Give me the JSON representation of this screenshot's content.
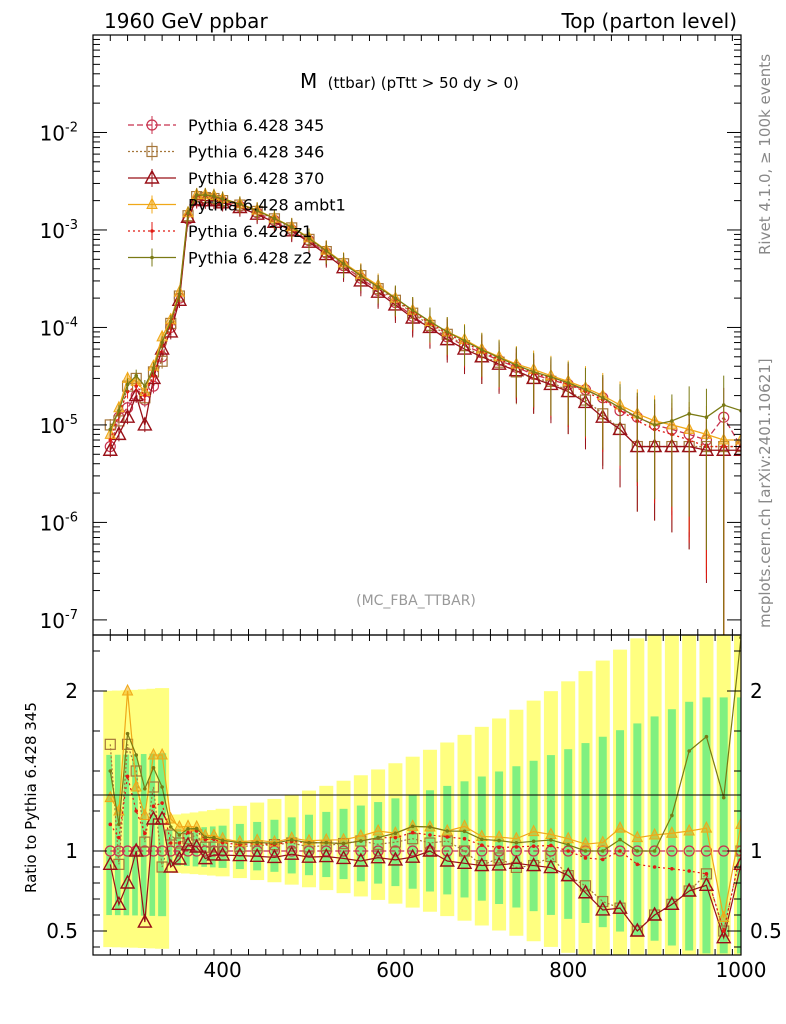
{
  "header": {
    "left": "1960 GeV ppbar",
    "right": "Top (parton level)"
  },
  "plot_title": "M (ttbar) (pTtt > 50 dy > 0)",
  "plot_title_main": "M",
  "plot_title_sub": "(ttbar) (pTtt > 50 dy > 0)",
  "analysis_tag": "(MC_FBA_TTBAR)",
  "side_text_top": "Rivet 4.1.0, ≥ 100k events",
  "side_text_bottom": "mcplots.cern.ch [arXiv:2401.10621]",
  "ratio_ylabel": "Ratio to Pythia 6.428 345",
  "colors": {
    "p345": "#c8324e",
    "p346": "#a5763a",
    "p370": "#991018",
    "ambt1": "#f0a818",
    "z1": "#e01a12",
    "z2": "#7a7a14",
    "band_yellow": "#ffff80",
    "band_green": "#80f080"
  },
  "chart_data": {
    "type": "line",
    "title": "M (ttbar) (pTtt > 50 dy > 0)",
    "xlabel": "",
    "ylabel": "",
    "xlim": [
      250,
      1000
    ],
    "ylim": [
      7e-08,
      0.1
    ],
    "yscale": "log",
    "ratio_ylim": [
      0.35,
      2.35
    ],
    "x_ticks": [
      "400",
      "600",
      "800",
      "1000"
    ],
    "y_ticks": [
      "10^-7",
      "10^-6",
      "10^-5",
      "10^-4",
      "10^-3",
      "10^-2"
    ],
    "ratio_ticks": [
      "0.5",
      "1",
      "2"
    ],
    "x": [
      270,
      280,
      290,
      300,
      310,
      320,
      330,
      340,
      350,
      360,
      370,
      380,
      390,
      400,
      420,
      440,
      460,
      480,
      500,
      520,
      540,
      560,
      580,
      600,
      620,
      640,
      660,
      680,
      700,
      720,
      740,
      760,
      780,
      800,
      820,
      840,
      860,
      880,
      900,
      920,
      940,
      960,
      980,
      1000
    ],
    "series": [
      {
        "name": "Pythia 6.428 345",
        "key": "p345",
        "marker": "circle",
        "dash": "6,3",
        "values": [
          6e-06,
          1.2e-05,
          1.5e-05,
          2e-05,
          1.8e-05,
          2.5e-05,
          5e-05,
          0.0001,
          0.0002,
          0.0013,
          0.002,
          0.0021,
          0.00205,
          0.00195,
          0.00175,
          0.0015,
          0.00125,
          0.001,
          0.00078,
          0.00058,
          0.00043,
          0.00032,
          0.00024,
          0.00018,
          0.00013,
          0.0001,
          8e-05,
          6.5e-05,
          5.5e-05,
          4.6e-05,
          3.9e-05,
          3.3e-05,
          2.9e-05,
          2.6e-05,
          2.3e-05,
          1.9e-05,
          1.4e-05,
          1.2e-05,
          1e-05,
          9e-06,
          8e-06,
          7e-06,
          1.2e-05,
          6e-06
        ]
      },
      {
        "name": "Pythia 6.428 346",
        "key": "p346",
        "marker": "square",
        "dash": "2,2",
        "values": [
          1e-05,
          1.1e-05,
          2.5e-05,
          3e-05,
          1.9e-05,
          3.5e-05,
          4.5e-05,
          0.00011,
          0.00021,
          0.0014,
          0.0022,
          0.00215,
          0.0021,
          0.002,
          0.0018,
          0.00155,
          0.0013,
          0.00105,
          0.0008,
          0.0006,
          0.00045,
          0.00034,
          0.00025,
          0.00019,
          0.00014,
          0.000105,
          8.5e-05,
          6.5e-05,
          5e-05,
          4.4e-05,
          3.5e-05,
          3e-05,
          2.8e-05,
          2.2e-05,
          1.8e-05,
          1.3e-05,
          9e-06,
          6e-06,
          6e-06,
          6e-06,
          6e-06,
          6e-06,
          6e-06,
          6e-06
        ]
      },
      {
        "name": "Pythia 6.428 370",
        "key": "p370",
        "marker": "triangle",
        "dash": "",
        "values": [
          5.5e-06,
          8e-06,
          1.2e-05,
          2e-05,
          1e-05,
          3e-05,
          6e-05,
          9e-05,
          0.00019,
          0.00135,
          0.00205,
          0.002,
          0.002,
          0.0019,
          0.0017,
          0.00145,
          0.0012,
          0.00098,
          0.00075,
          0.00056,
          0.00041,
          0.0003,
          0.00023,
          0.00017,
          0.000125,
          0.0001,
          7.5e-05,
          6e-05,
          5e-05,
          4.2e-05,
          3.6e-05,
          3e-05,
          2.6e-05,
          2.2e-05,
          1.7e-05,
          1.2e-05,
          9e-06,
          6e-06,
          6e-06,
          6e-06,
          6e-06,
          5.5e-06,
          5.5e-06,
          5.5e-06
        ]
      },
      {
        "name": "Pythia 6.428 ambt1",
        "key": "ambt1",
        "marker": "triangle-filled",
        "dash": "",
        "values": [
          8e-06,
          1.5e-05,
          3e-05,
          2.8e-05,
          2.2e-05,
          4e-05,
          8e-05,
          0.00012,
          0.00023,
          0.0015,
          0.0023,
          0.0023,
          0.00225,
          0.0021,
          0.00185,
          0.0016,
          0.00132,
          0.00108,
          0.00083,
          0.00062,
          0.00046,
          0.00035,
          0.00027,
          0.0002,
          0.00015,
          0.000115,
          9e-05,
          7.5e-05,
          6e-05,
          5e-05,
          4.2e-05,
          3.7e-05,
          3.2e-05,
          2.8e-05,
          2.4e-05,
          2e-05,
          1.6e-05,
          1.3e-05,
          1.1e-05,
          1e-05,
          9e-06,
          8e-06,
          7e-06,
          7e-06
        ]
      },
      {
        "name": "Pythia 6.428 z1",
        "key": "z1",
        "marker": "dot",
        "dash": "2,3",
        "values": [
          7e-06,
          1.3e-05,
          2.2e-05,
          2.5e-05,
          2e-05,
          3.2e-05,
          6.5e-05,
          0.000105,
          0.00021,
          0.00145,
          0.00225,
          0.00225,
          0.0022,
          0.00205,
          0.00182,
          0.00157,
          0.0013,
          0.00106,
          0.00082,
          0.00061,
          0.00045,
          0.00034,
          0.00026,
          0.000195,
          0.000145,
          0.00011,
          8.7e-05,
          7e-05,
          5.7e-05,
          4.7e-05,
          4e-05,
          3.4e-05,
          3e-05,
          2.6e-05,
          2.2e-05,
          1.8e-05,
          1.4e-05,
          1.1e-05,
          9e-06,
          8e-06,
          7e-06,
          6e-06,
          6e-06,
          6e-06
        ]
      },
      {
        "name": "Pythia 6.428 z2",
        "key": "z2",
        "marker": "dot",
        "dash": "",
        "values": [
          9e-06,
          1.4e-05,
          2.6e-05,
          3.2e-05,
          2.5e-05,
          3.8e-05,
          7e-05,
          0.000115,
          0.00022,
          0.00148,
          0.00228,
          0.00228,
          0.00222,
          0.00208,
          0.00184,
          0.00158,
          0.00131,
          0.00107,
          0.00082,
          0.00061,
          0.00045,
          0.00034,
          0.00026,
          0.0002,
          0.00015,
          0.000115,
          9e-05,
          7.3e-05,
          5.9e-05,
          4.9e-05,
          4.1e-05,
          3.5e-05,
          3.1e-05,
          2.7e-05,
          2.3e-05,
          1.9e-05,
          1.5e-05,
          1.2e-05,
          1e-05,
          1.1e-05,
          1.3e-05,
          1.2e-05,
          1.6e-05,
          1.4e-05
        ]
      }
    ]
  }
}
